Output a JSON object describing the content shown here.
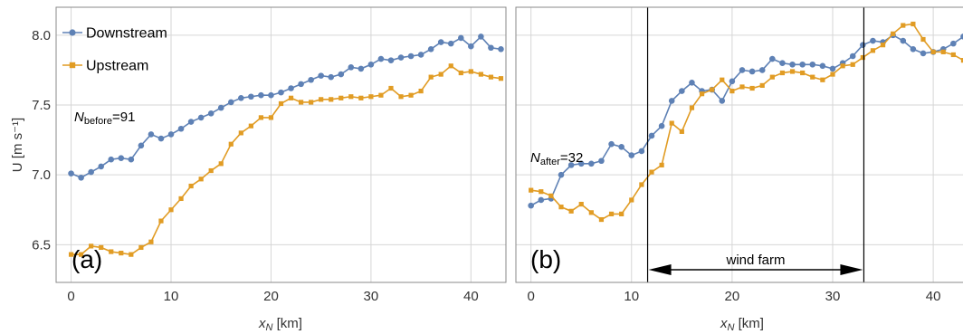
{
  "colors": {
    "downstream": "#5e81b5",
    "upstream": "#e19c24",
    "grid": "#d6d6d6",
    "frame": "#8a8a8a"
  },
  "chart_data": [
    {
      "type": "line",
      "panel_label": "(a)",
      "ylabel": "U [m s⁻¹]",
      "xlabel": "xN [km]",
      "xlabel_main": "x",
      "xlabel_sub": "N",
      "xlabel_unit": " [km]",
      "xlim": [
        -1.5,
        43.5
      ],
      "ylim": [
        6.23,
        8.2
      ],
      "xticks": [
        0,
        10,
        20,
        30,
        40
      ],
      "yticks": [
        6.5,
        7.0,
        7.5,
        8.0
      ],
      "ytick_labels": [
        "6.5",
        "7.0",
        "7.5",
        "8.0"
      ],
      "grid": true,
      "legend": [
        "Downstream",
        "Upstream"
      ],
      "legend_position": "top-left",
      "annotation": {
        "main": "N",
        "sub": "before",
        "value": "=91"
      },
      "x": [
        0,
        1,
        2,
        3,
        4,
        5,
        6,
        7,
        8,
        9,
        10,
        11,
        12,
        13,
        14,
        15,
        16,
        17,
        18,
        19,
        20,
        21,
        22,
        23,
        24,
        25,
        26,
        27,
        28,
        29,
        30,
        31,
        32,
        33,
        34,
        35,
        36,
        37,
        38,
        39,
        40,
        41,
        42,
        43
      ],
      "series": [
        {
          "name": "Downstream",
          "marker": "circle",
          "values": [
            7.01,
            6.98,
            7.02,
            7.06,
            7.11,
            7.12,
            7.11,
            7.21,
            7.29,
            7.26,
            7.29,
            7.33,
            7.38,
            7.41,
            7.44,
            7.48,
            7.52,
            7.55,
            7.56,
            7.57,
            7.57,
            7.59,
            7.62,
            7.65,
            7.68,
            7.71,
            7.7,
            7.72,
            7.77,
            7.76,
            7.79,
            7.83,
            7.82,
            7.84,
            7.85,
            7.86,
            7.9,
            7.95,
            7.94,
            7.98,
            7.92,
            7.99,
            7.91,
            7.9
          ]
        },
        {
          "name": "Upstream",
          "marker": "square",
          "values": [
            6.43,
            6.43,
            6.49,
            6.48,
            6.45,
            6.44,
            6.43,
            6.48,
            6.52,
            6.67,
            6.75,
            6.83,
            6.92,
            6.97,
            7.03,
            7.08,
            7.22,
            7.3,
            7.35,
            7.41,
            7.41,
            7.51,
            7.55,
            7.52,
            7.52,
            7.54,
            7.54,
            7.55,
            7.56,
            7.55,
            7.56,
            7.57,
            7.62,
            7.56,
            7.57,
            7.6,
            7.7,
            7.72,
            7.78,
            7.73,
            7.74,
            7.72,
            7.7,
            7.69
          ]
        }
      ]
    },
    {
      "type": "line",
      "panel_label": "(b)",
      "xlabel": "xN [km]",
      "xlabel_main": "x",
      "xlabel_sub": "N",
      "xlabel_unit": " [km]",
      "xlim": [
        -1.5,
        43.5
      ],
      "ylim": [
        6.23,
        8.2
      ],
      "xticks": [
        0,
        10,
        20,
        30,
        40
      ],
      "grid": true,
      "annotation": {
        "main": "N",
        "sub": "after",
        "value": "=32"
      },
      "wind_farm": {
        "label": "wind farm",
        "x_start": 11.6,
        "x_end": 33.1
      },
      "x": [
        0,
        1,
        2,
        3,
        4,
        5,
        6,
        7,
        8,
        9,
        10,
        11,
        12,
        13,
        14,
        15,
        16,
        17,
        18,
        19,
        20,
        21,
        22,
        23,
        24,
        25,
        26,
        27,
        28,
        29,
        30,
        31,
        32,
        33,
        34,
        35,
        36,
        37,
        38,
        39,
        40,
        41,
        42,
        43
      ],
      "series": [
        {
          "name": "Downstream",
          "marker": "circle",
          "values": [
            6.78,
            6.82,
            6.83,
            7.0,
            7.07,
            7.08,
            7.08,
            7.1,
            7.22,
            7.2,
            7.14,
            7.17,
            7.28,
            7.35,
            7.53,
            7.6,
            7.66,
            7.6,
            7.61,
            7.53,
            7.67,
            7.75,
            7.74,
            7.75,
            7.83,
            7.8,
            7.79,
            7.79,
            7.79,
            7.78,
            7.76,
            7.8,
            7.85,
            7.93,
            7.96,
            7.95,
            8.0,
            7.96,
            7.9,
            7.87,
            7.88,
            7.9,
            7.94,
            7.99
          ]
        },
        {
          "name": "Upstream",
          "marker": "square",
          "values": [
            6.89,
            6.88,
            6.85,
            6.77,
            6.74,
            6.79,
            6.73,
            6.68,
            6.72,
            6.72,
            6.82,
            6.93,
            7.02,
            7.07,
            7.37,
            7.31,
            7.48,
            7.58,
            7.61,
            7.68,
            7.6,
            7.63,
            7.62,
            7.64,
            7.7,
            7.73,
            7.74,
            7.73,
            7.7,
            7.68,
            7.72,
            7.78,
            7.79,
            7.84,
            7.89,
            7.93,
            8.01,
            8.07,
            8.08,
            7.97,
            7.88,
            7.88,
            7.86,
            7.82
          ]
        }
      ]
    }
  ]
}
